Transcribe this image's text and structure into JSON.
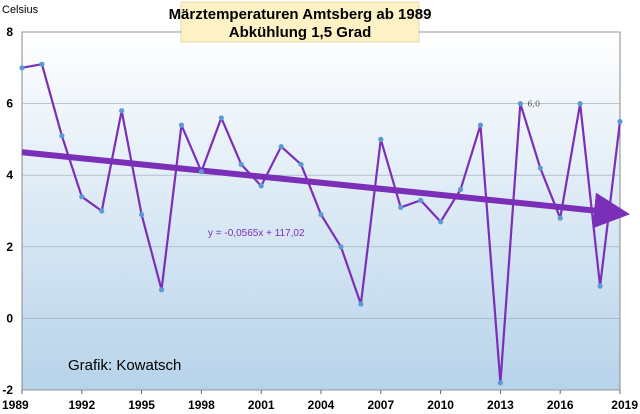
{
  "chart_data": {
    "type": "line",
    "title": "Märztemperaturen Amtsberg ab 1989",
    "subtitle": "Abkühlung 1,5 Grad",
    "ylabel": "Celsius",
    "xlabel": "",
    "credit": "Grafik: Kowatsch",
    "trendline_equation": "y = -0,0565x + 117,02",
    "trendline": {
      "slope": -0.0565,
      "intercept": 117.02
    },
    "point_label": {
      "year": 2014,
      "text": "6,0"
    },
    "xlim": [
      1989,
      2019
    ],
    "ylim": [
      -2,
      8
    ],
    "x_ticks": [
      "1989",
      "1992",
      "1995",
      "1998",
      "2001",
      "2004",
      "2007",
      "2010",
      "2013",
      "2016",
      "2019"
    ],
    "y_ticks": [
      "-2",
      "0",
      "2",
      "4",
      "6",
      "8"
    ],
    "grid": "horizontal",
    "series": [
      {
        "x": [
          1989,
          1990,
          1991,
          1992,
          1993,
          1994,
          1995,
          1996,
          1997,
          1998,
          1999,
          2000,
          2001,
          2002,
          2003,
          2004,
          2005,
          2006,
          2007,
          2008,
          2009,
          2010,
          2011,
          2012,
          2013,
          2014,
          2015,
          2016,
          2017,
          2018,
          2019
        ],
        "values": [
          7.0,
          7.1,
          5.1,
          3.4,
          3.0,
          5.8,
          2.9,
          0.8,
          5.4,
          4.1,
          5.6,
          4.3,
          3.7,
          4.8,
          4.3,
          2.9,
          2.0,
          0.4,
          5.0,
          3.1,
          3.3,
          2.7,
          3.6,
          5.4,
          -1.8,
          6.0,
          4.2,
          2.8,
          6.0,
          0.9,
          5.5
        ]
      }
    ],
    "colors": {
      "line": "#7b2fb8",
      "trend": "#7b2fb8",
      "marker": "#5b9bd5",
      "plot_top": "#ffffff",
      "plot_bottom": "#b7d3ea",
      "title_box": "#fdf2c6"
    }
  }
}
